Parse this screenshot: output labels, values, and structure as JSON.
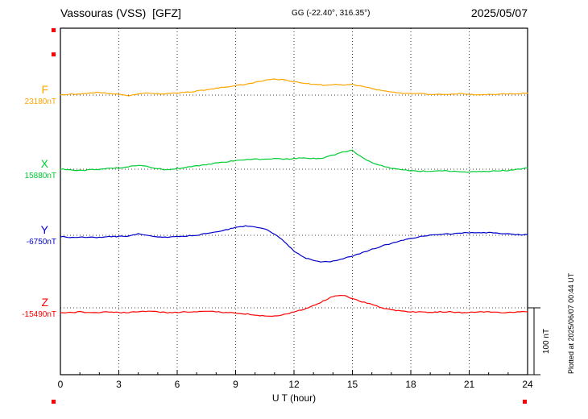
{
  "header": {
    "station_title": "Vassouras (VSS)  [GFZ]",
    "coordinates": "GG (-22.40°, 316.35°)",
    "date": "2025/05/07"
  },
  "axis": {
    "xlabel": "U T (hour)",
    "x_ticks": [
      "0",
      "3",
      "6",
      "9",
      "12",
      "15",
      "18",
      "21",
      "24"
    ]
  },
  "side": {
    "scale_label": "100 nT",
    "plotted_note": "Plotted at 2025/06/07 00:44 UT"
  },
  "chart_data": {
    "type": "line",
    "title": "Vassouras (VSS) [GFZ] magnetogram 2025/05/07",
    "xlabel": "U T (hour)",
    "x_range_hours": [
      0,
      24
    ],
    "x_tick_hours": [
      0,
      3,
      6,
      9,
      12,
      15,
      18,
      21,
      24
    ],
    "sample_step_hours": 0.5,
    "grid": "dotted vertical lines every 3 h, dotted horizontal baseline per component",
    "legend_position": "left margin, component letter + baseline value",
    "scale_bar_nT": 100,
    "marker_color": "#ff0000",
    "series": [
      {
        "name": "F",
        "baseline_label": "23180nT",
        "baseline_nT": 23180,
        "color": "#ffa500",
        "offsets_nT": [
          1,
          1,
          2,
          3,
          4,
          2,
          1,
          -1,
          2,
          3,
          2,
          2,
          3,
          4,
          6,
          8,
          10,
          12,
          14,
          16,
          19,
          22,
          24,
          23,
          20,
          18,
          16,
          15,
          16,
          15,
          16,
          13,
          10,
          7,
          5,
          3,
          2,
          2,
          1,
          1,
          1,
          2,
          1,
          1,
          1,
          1,
          2,
          2,
          3
        ]
      },
      {
        "name": "X",
        "baseline_label": "15880nT",
        "baseline_nT": 15880,
        "color": "#00cc33",
        "offsets_nT": [
          0,
          -1,
          -2,
          -1,
          0,
          1,
          2,
          4,
          6,
          4,
          1,
          -1,
          1,
          3,
          5,
          7,
          9,
          11,
          13,
          14,
          15,
          15,
          16,
          15,
          16,
          17,
          16,
          17,
          21,
          26,
          28,
          18,
          10,
          5,
          1,
          -1,
          -2,
          -3,
          -3,
          -2,
          -3,
          -4,
          -4,
          -3,
          -3,
          -2,
          -2,
          0,
          2
        ]
      },
      {
        "name": "Y",
        "baseline_label": "-6750nT",
        "baseline_nT": -6750,
        "color": "#0000cc",
        "offsets_nT": [
          -2,
          -3,
          -3,
          -3,
          -3,
          -2,
          -2,
          -1,
          2,
          0,
          -2,
          -3,
          -2,
          -1,
          0,
          3,
          5,
          8,
          12,
          14,
          13,
          10,
          2,
          -9,
          -24,
          -33,
          -38,
          -40,
          -39,
          -35,
          -31,
          -26,
          -21,
          -16,
          -12,
          -8,
          -5,
          -2,
          0,
          1,
          2,
          3,
          4,
          4,
          4,
          3,
          2,
          1,
          1
        ]
      },
      {
        "name": "Z",
        "baseline_label": "-15490nT",
        "baseline_nT": -15490,
        "color": "#ff0000",
        "offsets_nT": [
          -7,
          -7,
          -6,
          -7,
          -7,
          -6,
          -7,
          -7,
          -6,
          -5,
          -6,
          -7,
          -7,
          -6,
          -6,
          -5,
          -6,
          -7,
          -8,
          -9,
          -11,
          -12,
          -12,
          -10,
          -6,
          -2,
          3,
          10,
          17,
          19,
          14,
          9,
          5,
          0,
          -3,
          -5,
          -6,
          -6,
          -7,
          -6,
          -6,
          -7,
          -7,
          -6,
          -6,
          -7,
          -7,
          -6,
          -6
        ]
      }
    ]
  }
}
